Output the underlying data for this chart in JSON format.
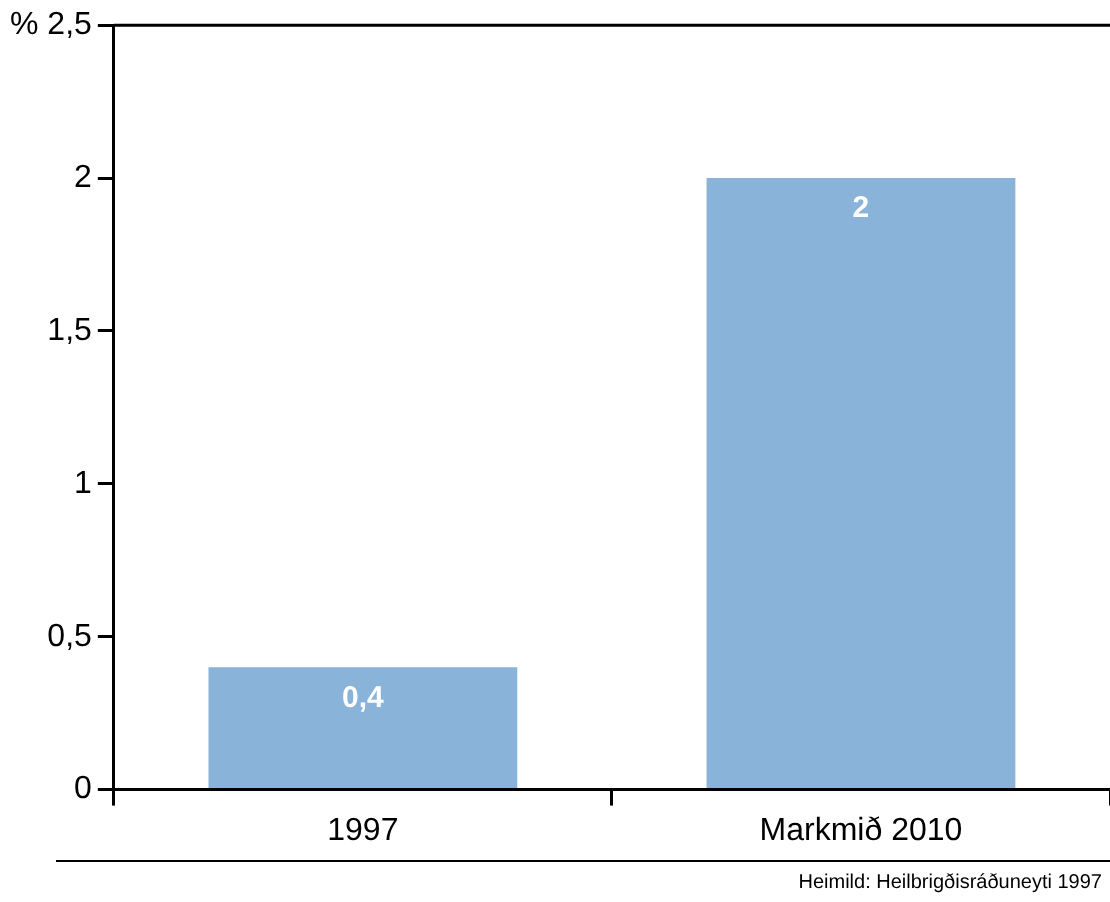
{
  "chart_data": {
    "type": "bar",
    "categories": [
      "1997",
      "Markmið 2010"
    ],
    "values": [
      0.4,
      2
    ],
    "color": "#8ab3d9",
    "value_labels": [
      "0,4",
      "2"
    ],
    "ylim": [
      0,
      2.5
    ],
    "yticks": [
      0,
      {
        "value": 0.5,
        "label": "0,5"
      },
      1,
      {
        "value": 1.5,
        "label": "1,5"
      },
      2,
      {
        "value": 2.5,
        "label": "% 2,5"
      }
    ],
    "grid": false,
    "legend": false,
    "annotations": [
      "Heimild: Heilbrigðisráðuneyti 1997"
    ]
  }
}
